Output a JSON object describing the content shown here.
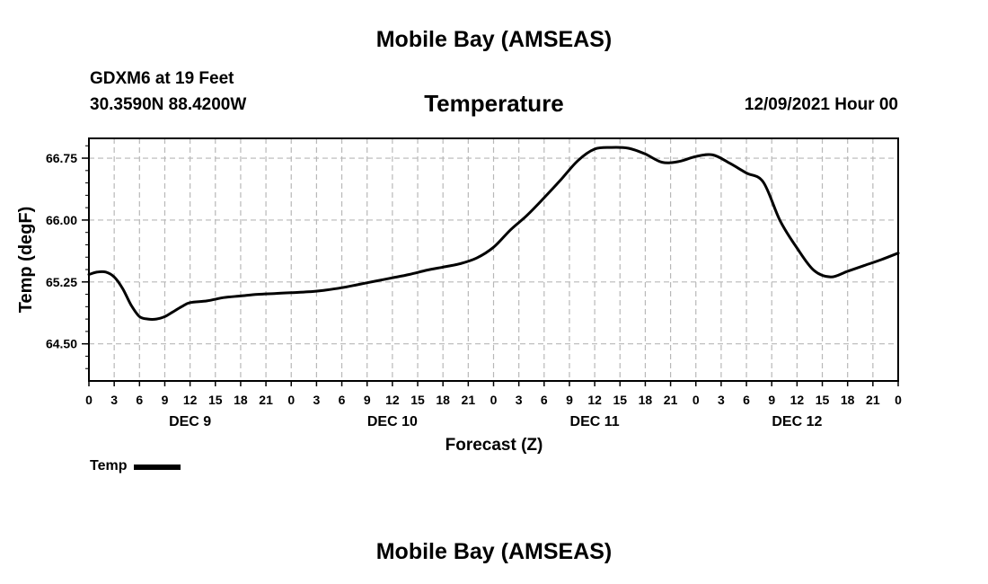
{
  "header": {
    "title": "Mobile Bay (AMSEAS)",
    "station": "GDXM6 at 19 Feet",
    "coords": "30.3590N  88.4200W",
    "panel_title": "Temperature",
    "date": "12/09/2021 Hour 00"
  },
  "footer": {
    "title": "Mobile Bay (AMSEAS)"
  },
  "legend": {
    "label": "Temp",
    "color": "#000000"
  },
  "chart_data": {
    "type": "line",
    "title": "Temperature",
    "xlabel": "Forecast (Z)",
    "ylabel": "Temp (degF)",
    "xlim": [
      0,
      96
    ],
    "ylim": [
      64.05,
      66.99
    ],
    "x_unit": "hours from 12/09/2021 00Z",
    "yticks": [
      64.5,
      65.25,
      66.0,
      66.75
    ],
    "ytick_labels": [
      "64.50",
      "65.25",
      "66.00",
      "66.75"
    ],
    "xticks": [
      0,
      3,
      6,
      9,
      12,
      15,
      18,
      21,
      24,
      27,
      30,
      33,
      36,
      39,
      42,
      45,
      48,
      51,
      54,
      57,
      60,
      63,
      66,
      69,
      72,
      75,
      78,
      81,
      84,
      87,
      90,
      93,
      96
    ],
    "xtick_labels": [
      "0",
      "3",
      "6",
      "9",
      "12",
      "15",
      "18",
      "21",
      "0",
      "3",
      "6",
      "9",
      "12",
      "15",
      "18",
      "21",
      "0",
      "3",
      "6",
      "9",
      "12",
      "15",
      "18",
      "21",
      "0",
      "3",
      "6",
      "9",
      "12",
      "15",
      "18",
      "21",
      "0"
    ],
    "day_labels": [
      {
        "x": 12,
        "label": "DEC 9"
      },
      {
        "x": 36,
        "label": "DEC 10"
      },
      {
        "x": 60,
        "label": "DEC 11"
      },
      {
        "x": 84,
        "label": "DEC 12"
      }
    ],
    "grid": true,
    "legend_position": "bottom-left",
    "series": [
      {
        "name": "Temp",
        "color": "#000000",
        "x": [
          0,
          1,
          2,
          3,
          4,
          5,
          6,
          7,
          8,
          9,
          10,
          11,
          12,
          14,
          16,
          18,
          20,
          22,
          24,
          26,
          28,
          30,
          32,
          34,
          36,
          38,
          40,
          42,
          44,
          46,
          48,
          50,
          52,
          54,
          56,
          58,
          60,
          62,
          64,
          66,
          68,
          70,
          72,
          74,
          76,
          78,
          80,
          82,
          84,
          86,
          88,
          90,
          92,
          94,
          96
        ],
        "y": [
          65.34,
          65.37,
          65.37,
          65.31,
          65.17,
          64.97,
          64.83,
          64.8,
          64.8,
          64.83,
          64.89,
          64.95,
          65.0,
          65.02,
          65.06,
          65.08,
          65.1,
          65.11,
          65.12,
          65.13,
          65.15,
          65.18,
          65.22,
          65.26,
          65.3,
          65.34,
          65.39,
          65.43,
          65.47,
          65.54,
          65.67,
          65.88,
          66.06,
          66.27,
          66.49,
          66.72,
          66.86,
          66.88,
          66.87,
          66.8,
          66.7,
          66.71,
          66.77,
          66.79,
          66.69,
          66.57,
          66.46,
          65.99,
          65.66,
          65.39,
          65.31,
          65.38,
          65.45,
          65.52,
          65.6
        ]
      }
    ]
  }
}
